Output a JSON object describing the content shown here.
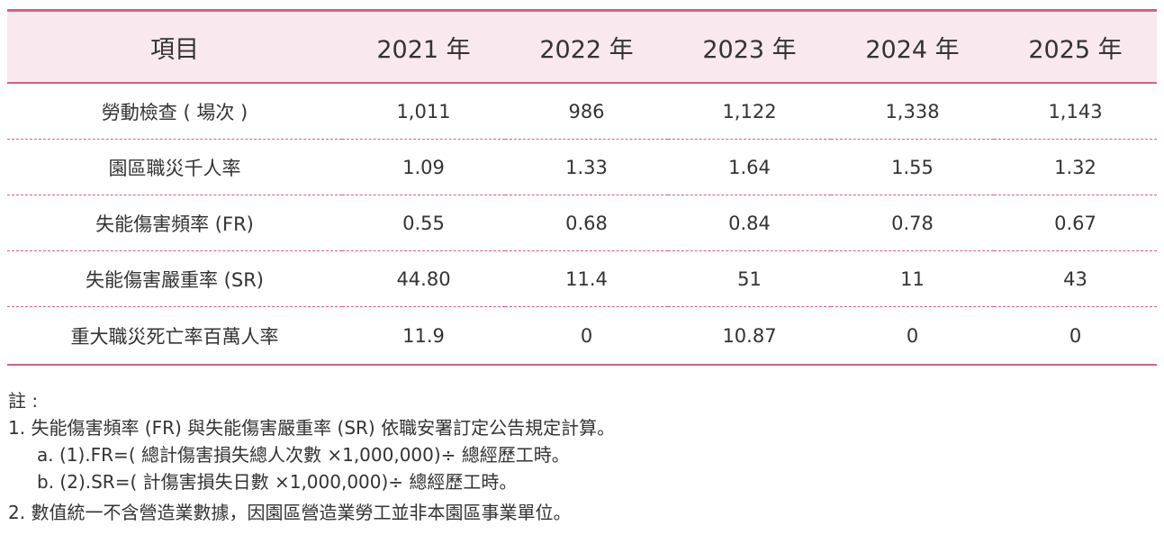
{
  "table": {
    "headers": [
      "項目",
      "2021 年",
      "2022 年",
      "2023 年",
      "2024 年",
      "2025 年"
    ],
    "rows": [
      {
        "label": "勞動檢查 ( 場次 )",
        "values": [
          "1,011",
          "986",
          "1,122",
          "1,338",
          "1,143"
        ]
      },
      {
        "label": "園區職災千人率",
        "values": [
          "1.09",
          "1.33",
          "1.64",
          "1.55",
          "1.32"
        ]
      },
      {
        "label": "失能傷害頻率 (FR)",
        "values": [
          "0.55",
          "0.68",
          "0.84",
          "0.78",
          "0.67"
        ]
      },
      {
        "label": "失能傷害嚴重率 (SR)",
        "values": [
          "44.80",
          "11.4",
          "51",
          "11",
          "43"
        ]
      },
      {
        "label": "重大職災死亡率百萬人率",
        "values": [
          "11.9",
          "0",
          "10.87",
          "0",
          "0"
        ]
      }
    ]
  },
  "notes": {
    "title": "註 :",
    "line1": "1. 失能傷害頻率 (FR) 與失能傷害嚴重率 (SR) 依職安署訂定公告規定計算。",
    "line1a": "a. (1).FR=( 總計傷害損失總人次數 ×1,000,000)÷ 總經歷工時。",
    "line1b": "b. (2).SR=( 計傷害損失日數 ×1,000,000)÷ 總經歷工時。",
    "line2": "2. 數值統一不含營造業數據，因園區營造業勞工並非本園區事業單位。"
  },
  "colors": {
    "accent": "#d4617f",
    "header_bg": "#f9e9ee"
  }
}
